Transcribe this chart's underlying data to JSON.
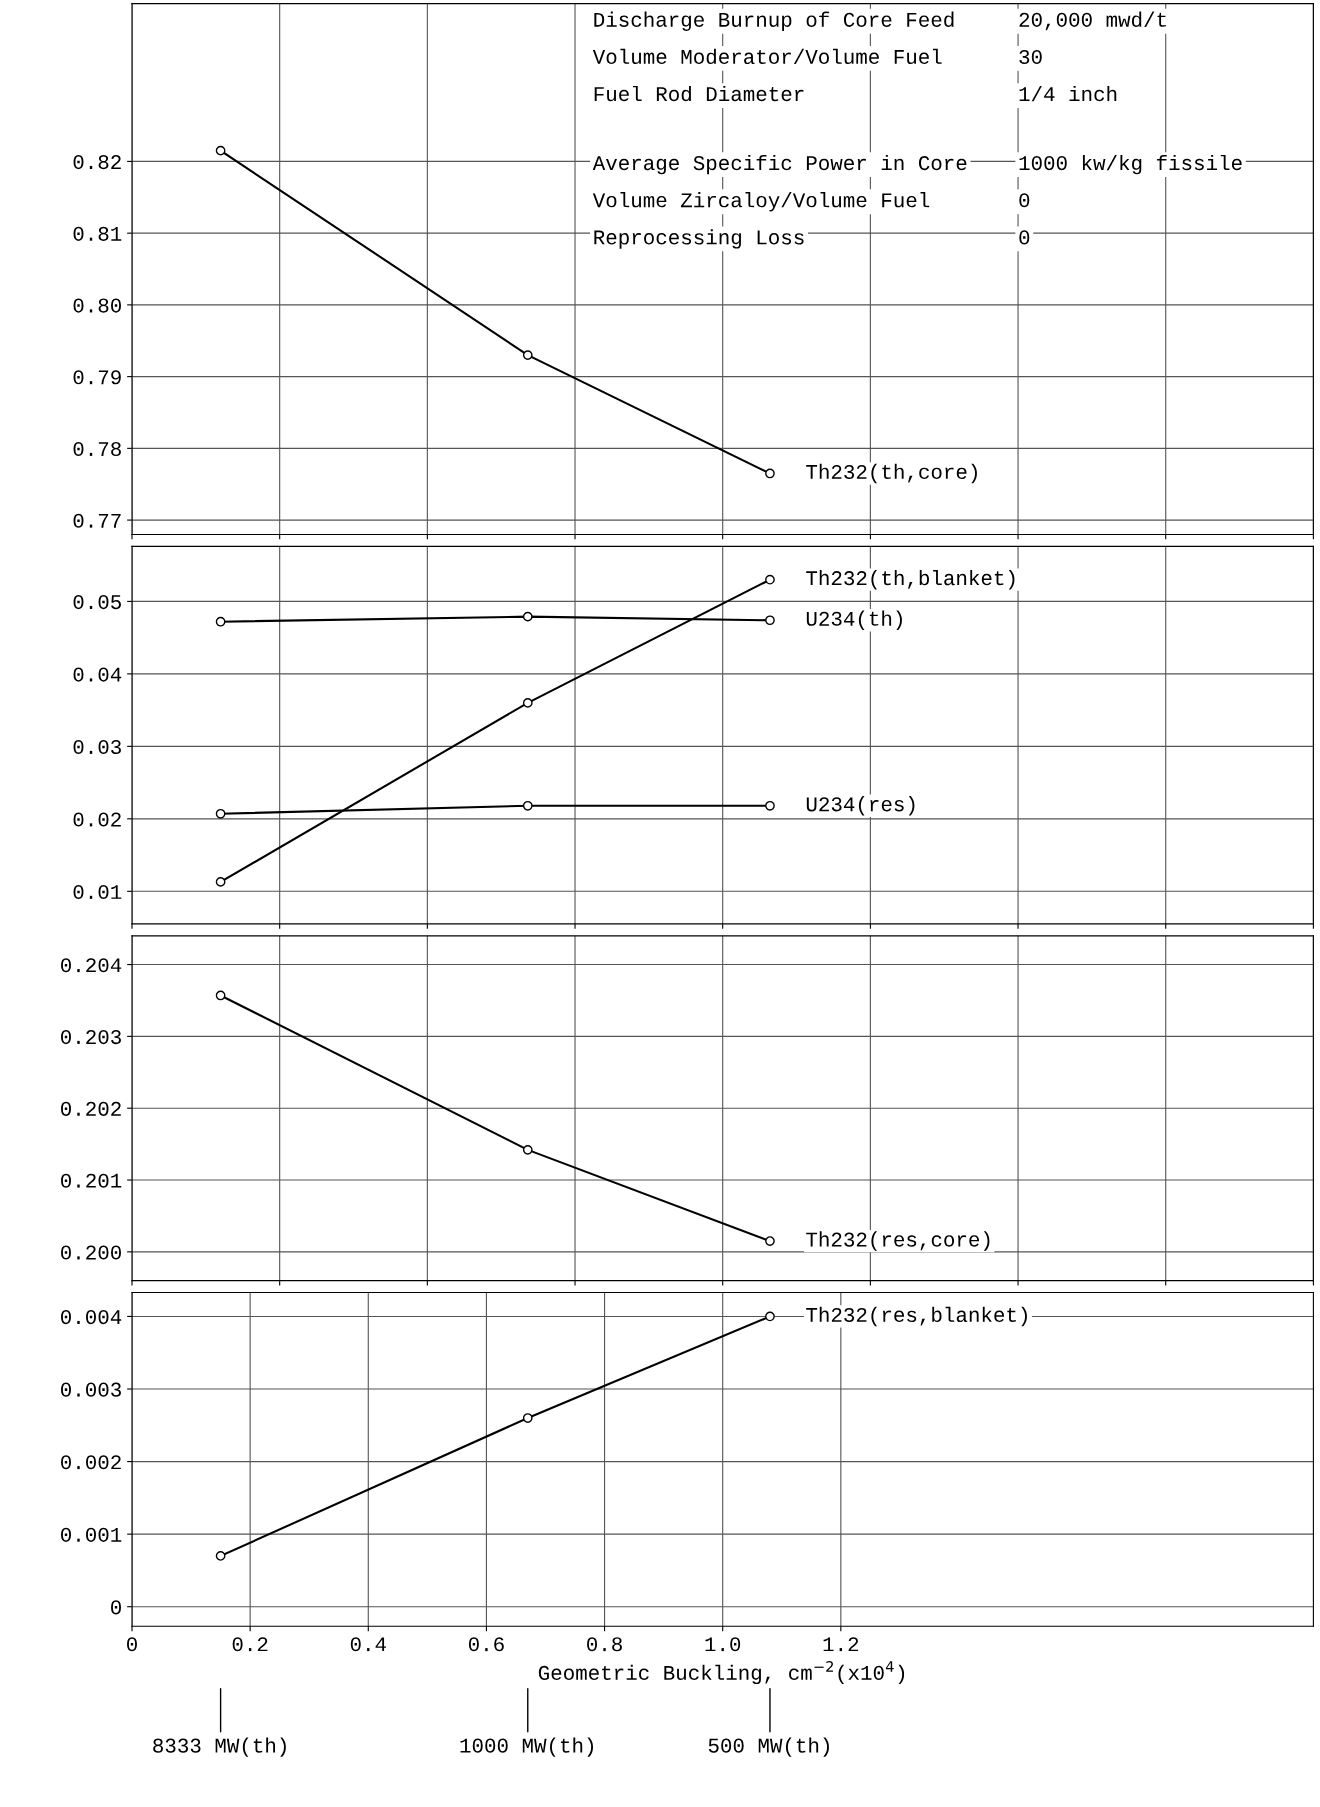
{
  "chart_data": [
    {
      "type": "line",
      "x": [
        0.15,
        0.67,
        1.08
      ],
      "xlim": [
        0,
        2.0
      ],
      "ylim": [
        0.768,
        0.842
      ],
      "yticks": [
        0.77,
        0.78,
        0.79,
        {
          "value": 0.8,
          "label": "0.80"
        },
        0.81,
        0.82
      ],
      "tick_labels": "y",
      "grid": true,
      "marker": "circle",
      "line_style": "solid",
      "series": [
        {
          "name": "Th232(th,core)",
          "color": "#000000",
          "values": [
            0.8215,
            0.793,
            0.7765
          ]
        }
      ],
      "annotations": [
        "Discharge Burnup of Core Feed",
        "20,000 mwd/t",
        "Volume Moderator/Volume Fuel",
        "30",
        "Fuel Rod Diameter",
        "1/4 inch",
        "Average Specific Power in Core",
        "1000 kw/kg fissile",
        "Volume Zircaloy/Volume Fuel",
        "0",
        "Reprocessing Loss",
        "0"
      ]
    },
    {
      "type": "line",
      "x": [
        0.15,
        0.67,
        1.08
      ],
      "xlim": [
        0,
        2.0
      ],
      "ylim": [
        0.0055,
        0.0576
      ],
      "yticks": [
        0.01,
        0.02,
        0.03,
        0.04,
        0.05
      ],
      "tick_labels": "y",
      "grid": true,
      "marker": "circle",
      "line_style": "solid",
      "series": [
        {
          "name": "Th232(th,blanket)",
          "color": "#000000",
          "values": [
            0.0113,
            0.036,
            0.053
          ]
        },
        {
          "name": "U234(th)",
          "color": "#000000",
          "values": [
            0.0472,
            0.0479,
            0.0474
          ]
        },
        {
          "name": "U234(res)",
          "color": "#000000",
          "values": [
            0.0207,
            0.0218,
            0.0218
          ]
        }
      ]
    },
    {
      "type": "line",
      "x": [
        0.15,
        0.67,
        1.08
      ],
      "xlim": [
        0,
        2.0
      ],
      "ylim": [
        0.1996,
        0.2044
      ],
      "yticks": [
        {
          "value": 0.2,
          "label": "0.200"
        },
        0.201,
        0.202,
        0.203,
        0.204
      ],
      "tick_labels": "y",
      "grid": true,
      "marker": "circle",
      "line_style": "solid",
      "series": [
        {
          "name": "Th232(res,core)",
          "color": "#000000",
          "values": [
            0.20357,
            0.20142,
            0.20015
          ]
        }
      ]
    },
    {
      "type": "line",
      "x": [
        0.15,
        0.67,
        1.08
      ],
      "xlim": [
        0,
        2.0
      ],
      "ylim": [
        -0.00027,
        0.00433
      ],
      "xticks": [
        0,
        0.2,
        0.4,
        0.6,
        0.8,
        {
          "value": 1.0,
          "label": "1.0"
        },
        1.2
      ],
      "yticks": [
        0,
        0.001,
        0.002,
        0.003,
        0.004
      ],
      "grid": true,
      "marker": "circle",
      "line_style": "solid",
      "xlabel": "Geometric Buckling, cm$^{−2}$(x10$^{4}$)",
      "annotations": [
        {
          "text": "8333 MW(th)",
          "x": 0.15
        },
        {
          "text": "1000 MW(th)",
          "x": 0.67
        },
        {
          "text": "500 MW(th)",
          "x": 1.08
        }
      ],
      "series": [
        {
          "name": "Th232(res,blanket)",
          "color": "#000000",
          "values": [
            0.0007,
            0.0026,
            0.004
          ]
        }
      ]
    }
  ]
}
